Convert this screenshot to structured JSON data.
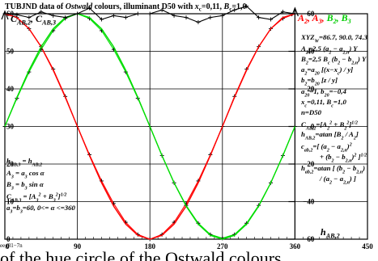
{
  "chart_data": {
    "type": "line",
    "title_parts": [
      "TUBJND data of ",
      "Ostwald",
      " colours, illuminant D50 with ",
      "x",
      "c",
      "=0,11, ",
      "B",
      "c",
      "=1,0"
    ],
    "x_ticks": [
      "0",
      "90",
      "180",
      "270",
      "360",
      "450"
    ],
    "y_ticks_left": [
      "60",
      "50",
      "40",
      "30",
      "20",
      "10",
      "0"
    ],
    "y_ticks_right": [
      "60",
      "40",
      "20",
      "0",
      "−20",
      "−40",
      "−60"
    ],
    "left_axis_label": "C_AB,2, C_AB,3",
    "right_axis_label": "A_2, A_3, B_2, B_3",
    "x_axis_label": "h_AB,2",
    "xlim": [
      0,
      450
    ],
    "ylim_left": [
      0,
      60
    ],
    "ylim_right": [
      -60,
      60
    ],
    "grid": true,
    "series": [
      {
        "name": "A_2",
        "color": "#ff0000",
        "style": "crosses",
        "x": [
          0,
          15,
          30,
          45,
          60,
          75,
          90,
          105,
          120,
          135,
          150,
          165,
          180,
          195,
          210,
          225,
          240,
          255,
          270,
          285,
          300,
          315,
          330,
          345,
          360
        ],
        "y": [
          60,
          58,
          52,
          42.5,
          30.5,
          16,
          0,
          -15,
          -29,
          -41,
          -51,
          -57.5,
          -60,
          -57.5,
          -51,
          -41,
          -29,
          -15,
          0,
          16,
          30.5,
          42.5,
          52,
          57.5,
          60
        ]
      },
      {
        "name": "A_3",
        "color": "#ff0000",
        "style": "line",
        "x": [
          0,
          15,
          30,
          45,
          60,
          75,
          90,
          105,
          120,
          135,
          150,
          165,
          180,
          195,
          210,
          225,
          240,
          255,
          270,
          285,
          300,
          315,
          330,
          345,
          360
        ],
        "y": [
          60,
          58,
          52,
          42.4,
          30,
          15.5,
          0,
          -15.5,
          -30,
          -42.4,
          -52,
          -58,
          -60,
          -58,
          -52,
          -42.4,
          -30,
          -15.5,
          0,
          15.5,
          30,
          42.4,
          52,
          58,
          60
        ]
      },
      {
        "name": "B_2",
        "color": "#00dd00",
        "style": "crosses",
        "x": [
          0,
          15,
          30,
          45,
          60,
          75,
          90,
          105,
          120,
          135,
          150,
          165,
          180,
          195,
          210,
          225,
          240,
          255,
          270,
          285,
          300,
          315,
          330,
          345,
          360
        ],
        "y": [
          0,
          15,
          29,
          41,
          51,
          57.5,
          60,
          57.5,
          51,
          41,
          29,
          15,
          0,
          -15.5,
          -30,
          -42,
          -51.5,
          -57.5,
          -59.5,
          -57.5,
          -51.5,
          -42,
          -30,
          -15.5,
          0
        ]
      },
      {
        "name": "B_3",
        "color": "#00dd00",
        "style": "line",
        "x": [
          0,
          15,
          30,
          45,
          60,
          75,
          90,
          105,
          120,
          135,
          150,
          165,
          180,
          195,
          210,
          225,
          240,
          255,
          270,
          285,
          300,
          315,
          330,
          345,
          360
        ],
        "y": [
          0,
          15.5,
          30,
          42.4,
          52,
          58,
          60,
          58,
          52,
          42.4,
          30,
          15.5,
          0,
          -15.5,
          -30,
          -42.4,
          -52,
          -58,
          -60,
          -58,
          -52,
          -42.4,
          -30,
          -15.5,
          0
        ]
      },
      {
        "name": "C_AB,2",
        "color": "#000000",
        "style": "crosses",
        "x": [
          0,
          15,
          30,
          45,
          60,
          75,
          90,
          105,
          120,
          135,
          150,
          165,
          180,
          195,
          210,
          225,
          240,
          255,
          270,
          285,
          300,
          315,
          330,
          345,
          360
        ],
        "y": [
          60,
          59.5,
          58,
          61,
          59,
          58,
          60,
          63,
          57,
          59,
          58,
          60,
          60,
          62,
          59,
          58,
          55.5,
          58,
          59,
          62,
          64,
          58,
          57,
          61,
          60
        ]
      },
      {
        "name": "C_AB,3",
        "color": "#000000",
        "style": "dash",
        "x": [
          0,
          360
        ],
        "y": [
          60,
          60
        ]
      }
    ],
    "right_legend_lines": [
      "XYZ_W=86.7, 90.0, 74.3",
      "A_2=2,5 (a_2 − a_2,n) Y",
      "B_2=2,5 B_c (b_2 − b_2,n) Y",
      "a_2=a_20 [(x−x_c) / y]",
      "b_2=b_20 [z / y]",
      "a_20=1, b_20=−0,4",
      "x_c=0,11, B_c=1,0",
      "n=D50",
      "C_AB,2=[A_2^2 + B_2^2]^1/2",
      "h_AB,2=atan [B_2 / A_2]",
      "c_ab,2=[ (a_2 − a_2,n)^2",
      "+ (b_2 − b_2,n)^2 ]^1/2",
      "h_ab,2=atan [ (b_2 − b_2,n)",
      "/ (a_2 − a_2,n) ]"
    ],
    "left_legend_lines": [
      "h_AB,3 = h_AB,2",
      "A_3 = a_3 cos α",
      "B_3 = b_3 sin α",
      "C_AB,3 = [A_3^2 + B_3^2]^1/2",
      "a_3=b_3=60, 0<= α <=360"
    ],
    "footnote": "eeg81−7n"
  },
  "footer_text": "of the hue circle of the Ostwald colours"
}
